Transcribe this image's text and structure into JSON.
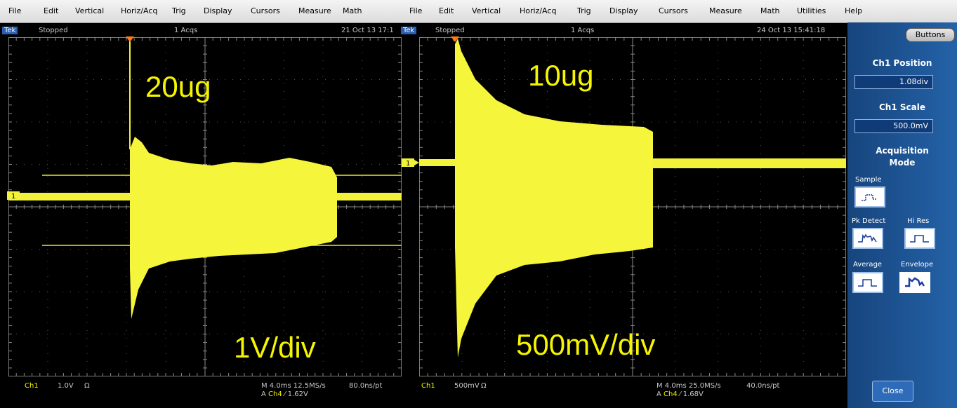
{
  "menu_left": [
    "File",
    "Edit",
    "Vertical",
    "Horiz/Acq",
    "Trig",
    "Display",
    "Cursors",
    "Measure",
    "Math"
  ],
  "menu_right": [
    "File",
    "Edit",
    "Vertical",
    "Horiz/Acq",
    "Trig",
    "Display",
    "Cursors",
    "Measure",
    "Math",
    "Utilities",
    "Help"
  ],
  "scopes": [
    {
      "status": {
        "brand": "Tek",
        "state": "Stopped",
        "acqs": "1 Acqs",
        "date": "21 Oct 13 17:1"
      },
      "overlay": {
        "sample": "20ug",
        "scale": "1V/div"
      },
      "ch_marker": "1",
      "footer": {
        "channel": "Ch1",
        "scale": "1.0V",
        "coupling": "Ω",
        "timebase": "M 4.0ms 12.5MS/s",
        "resolution": "80.0ns/pt",
        "trigger_prefix": "A",
        "trigger_source": "Ch4",
        "trigger_slope": "⁄",
        "trigger_level": "1.62V"
      }
    },
    {
      "status": {
        "brand": "Tek",
        "state": "Stopped",
        "acqs": "1 Acqs",
        "date": "24 Oct 13 15:41:18"
      },
      "overlay": {
        "sample": "10ug",
        "scale": "500mV/div"
      },
      "ch_marker": "1",
      "footer": {
        "channel": "Ch1",
        "scale": "500mV",
        "coupling": "Ω",
        "timebase": "M 4.0ms 25.0MS/s",
        "resolution": "40.0ns/pt",
        "trigger_prefix": "A",
        "trigger_source": "Ch4",
        "trigger_slope": "⁄",
        "trigger_level": "1.68V"
      }
    }
  ],
  "sidebar": {
    "buttons": "Buttons",
    "position_title": "Ch1 Position",
    "position_value": "1.08div",
    "scale_title": "Ch1 Scale",
    "scale_value": "500.0mV",
    "acq_title_1": "Acquisition",
    "acq_title_2": "Mode",
    "sample": "Sample",
    "pk_detect": "Pk Detect",
    "hi_res": "Hi Res",
    "average": "Average",
    "envelope": "Envelope",
    "close": "Close"
  }
}
